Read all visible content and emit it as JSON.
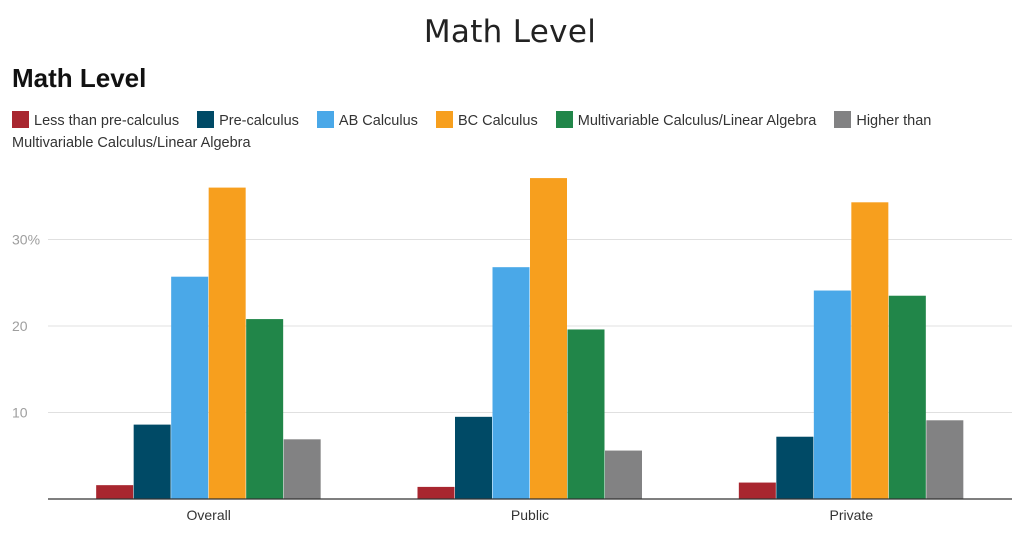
{
  "header": {
    "title": "Math Level"
  },
  "chart_data": {
    "type": "bar",
    "title": "Math Level",
    "xlabel": "",
    "ylabel": "",
    "categories": [
      "Overall",
      "Public",
      "Private"
    ],
    "series": [
      {
        "name": "Less than pre-calculus",
        "color": "#a8262f",
        "values": [
          1.6,
          1.4,
          1.9
        ]
      },
      {
        "name": "Pre-calculus",
        "color": "#004a66",
        "values": [
          8.6,
          9.5,
          7.2
        ]
      },
      {
        "name": "AB Calculus",
        "color": "#4aa8e8",
        "values": [
          25.7,
          26.8,
          24.1
        ]
      },
      {
        "name": "BC Calculus",
        "color": "#f79f1e",
        "values": [
          36.0,
          37.1,
          34.3
        ]
      },
      {
        "name": "Multivariable Calculus/Linear Algebra",
        "color": "#218649",
        "values": [
          20.8,
          19.6,
          23.5
        ]
      },
      {
        "name": "Higher than Multivariable Calculus/Linear Algebra",
        "color": "#828283",
        "values": [
          6.9,
          5.6,
          9.1
        ]
      }
    ],
    "yticks": [
      {
        "value": 10,
        "label": "10"
      },
      {
        "value": 20,
        "label": "20"
      },
      {
        "value": 30,
        "label": "30%"
      }
    ],
    "ylim": [
      0,
      40
    ],
    "grid": true,
    "legend_position": "top-left"
  }
}
